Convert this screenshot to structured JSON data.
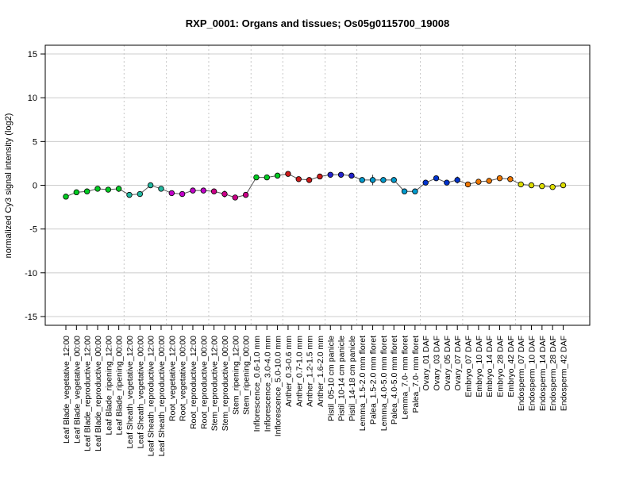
{
  "chart_data": {
    "type": "line",
    "title": "RXP_0001: Organs and tissues; Os05g0115700_19008",
    "ylabel": "normalized Cy3 signal intensity (log2)",
    "xlabel": "",
    "ylim": [
      -16,
      16
    ],
    "yticks": [
      -15,
      -10,
      -5,
      0,
      5,
      10,
      15
    ],
    "grid": true,
    "legend": "none",
    "categories": [
      "Leaf Blade_vegetative_12:00",
      "Leaf Blade_vegetative_00:00",
      "Leaf Blade_reproductive_12:00",
      "Leaf Blade_reproductive_00:00",
      "Leaf Blade_ripening_12:00",
      "Leaf Blade_ripening_00:00",
      "Leaf Sheath_vegetative_12:00",
      "Leaf Sheath_vegetative_00:00",
      "Leaf Sheath_reproductive_12:00",
      "Leaf Sheath_reproductive_00:00",
      "Root_vegetative_12:00",
      "Root_vegetative_00:00",
      "Root_reproductive_12:00",
      "Root_reproductive_00:00",
      "Stem_reproductive_12:00",
      "Stem_reproductive_00:00",
      "Stem_ripening_12:00",
      "Stem_ripening_00:00",
      "Inflorescence_0.6-1.0 mm",
      "Inflorescence_3.0-4.0 mm",
      "Inflorescence_5.0-10.0 mm",
      "Anther_0.3-0.6 mm",
      "Anther_0.7-1.0 mm",
      "Anther_1.2-1.5 mm",
      "Anther_1.6-2.0 mm",
      "Pistil_05-10 cm panicle",
      "Pistil_10-14 cm panicle",
      "Pistil_14-18 cm panicle",
      "Lemma_1.5-2.0 mm floret",
      "Palea_1.5-2.0 mm floret",
      "Lemma_4.0-5.0 mm floret",
      "Palea_4.0-5.0 mm floret",
      "Lemma_7.0- mm floret",
      "Palea_7.0- mm floret",
      "Ovary_01 DAF",
      "Ovary_03 DAF",
      "Ovary_05 DAF",
      "Ovary_07 DAF",
      "Embryo_07 DAF",
      "Embryo_10 DAF",
      "Embryo_14 DAF",
      "Embryo_28 DAF",
      "Embryo_42 DAF",
      "Endosperm_07 DAF",
      "Endosperm_10 DAF",
      "Endosperm_14 DAF",
      "Endosperm_28 DAF",
      "Endosperm_42 DAF"
    ],
    "values": [
      -1.3,
      -0.8,
      -0.7,
      -0.4,
      -0.5,
      -0.4,
      -1.1,
      -1.0,
      0.0,
      -0.4,
      -0.9,
      -1.0,
      -0.6,
      -0.6,
      -0.7,
      -1.0,
      -1.4,
      -1.1,
      0.9,
      0.9,
      1.1,
      1.3,
      0.7,
      0.6,
      1.0,
      1.2,
      1.2,
      1.1,
      0.6,
      0.6,
      0.6,
      0.6,
      -0.7,
      -0.7,
      0.3,
      0.8,
      0.3,
      0.6,
      0.1,
      0.4,
      0.5,
      0.8,
      0.7,
      0.1,
      0.0,
      -0.1,
      -0.2,
      0.0
    ],
    "errors": [
      0.15,
      0.1,
      0.1,
      0.15,
      0.15,
      0.35,
      0.1,
      0.1,
      0.15,
      0.15,
      0.1,
      0.1,
      0.1,
      0.1,
      0.2,
      0.4,
      0.1,
      0.3,
      0.25,
      0.15,
      0.15,
      0.15,
      0.3,
      0.1,
      0.2,
      0.15,
      0.3,
      0.2,
      0.1,
      0.6,
      0.2,
      0.2,
      0.1,
      0.1,
      0.1,
      0.2,
      0.1,
      0.4,
      0.1,
      0.15,
      0.2,
      0.1,
      0.15,
      0.1,
      0.1,
      0.1,
      0.1,
      0.1
    ],
    "colors": [
      "#00cc22",
      "#00cc22",
      "#00cc22",
      "#00cc22",
      "#00cc22",
      "#00cc22",
      "#22b8a0",
      "#22b8a0",
      "#22b8a0",
      "#22b8a0",
      "#c000c8",
      "#c000c8",
      "#c000c8",
      "#c000c8",
      "#cc0088",
      "#cc0088",
      "#cc0088",
      "#cc0088",
      "#00cc22",
      "#00cc22",
      "#00cc22",
      "#cc1a1a",
      "#cc1a1a",
      "#cc1a1a",
      "#cc1a1a",
      "#2222cc",
      "#2222cc",
      "#2222cc",
      "#009acd",
      "#009acd",
      "#009acd",
      "#009acd",
      "#009acd",
      "#009acd",
      "#0033cc",
      "#0033cc",
      "#0033cc",
      "#0033cc",
      "#ee7700",
      "#ee7700",
      "#ee7700",
      "#ee7700",
      "#ee7700",
      "#dddd00",
      "#dddd00",
      "#dddd00",
      "#dddd00",
      "#dddd00"
    ],
    "group_separators_after": [
      5,
      9,
      13,
      17,
      20,
      24,
      27,
      33,
      37,
      42
    ]
  }
}
